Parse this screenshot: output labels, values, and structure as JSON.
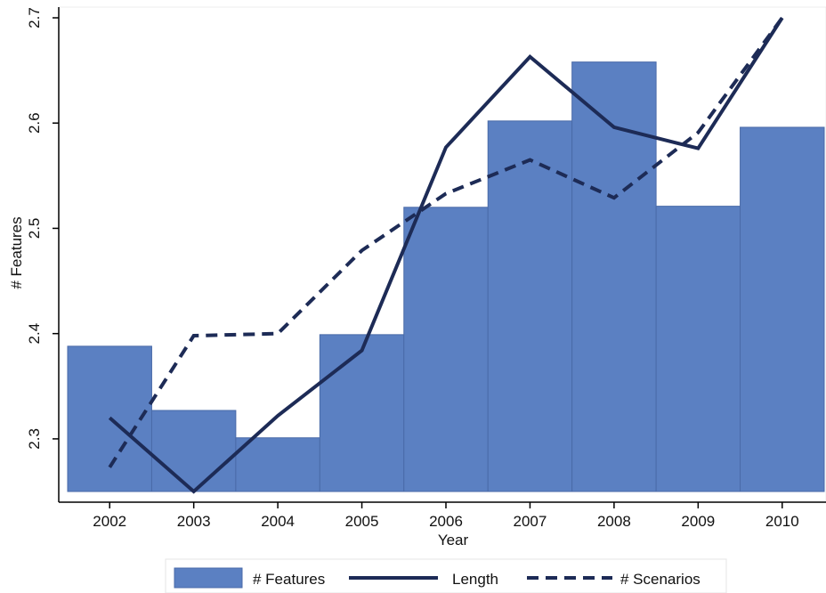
{
  "chart_data": {
    "type": "bar",
    "categories": [
      "2002",
      "2003",
      "2004",
      "2005",
      "2006",
      "2007",
      "2008",
      "2009",
      "2010"
    ],
    "series": [
      {
        "name": "# Features",
        "type": "bar",
        "color": "#5b80c2",
        "values": [
          2.388,
          2.327,
          2.301,
          2.399,
          2.52,
          2.602,
          2.658,
          2.521,
          2.596
        ]
      },
      {
        "name": "Length",
        "type": "line",
        "style": "solid",
        "color": "#1d2b56",
        "values": [
          2.32,
          2.25,
          2.322,
          2.384,
          2.577,
          2.663,
          2.596,
          2.576,
          2.7
        ]
      },
      {
        "name": "# Scenarios",
        "type": "line",
        "style": "dashed",
        "color": "#1d2b56",
        "values": [
          2.273,
          2.398,
          2.4,
          2.479,
          2.533,
          2.565,
          2.529,
          2.591,
          2.7
        ]
      }
    ],
    "xlabel": "Year",
    "ylabel": "# Features",
    "ylim": [
      2.25,
      2.7
    ],
    "yticks": [
      "2.3",
      "2.4",
      "2.5",
      "2.6",
      "2.7"
    ],
    "grid": false,
    "legend_placement": "bottom"
  }
}
